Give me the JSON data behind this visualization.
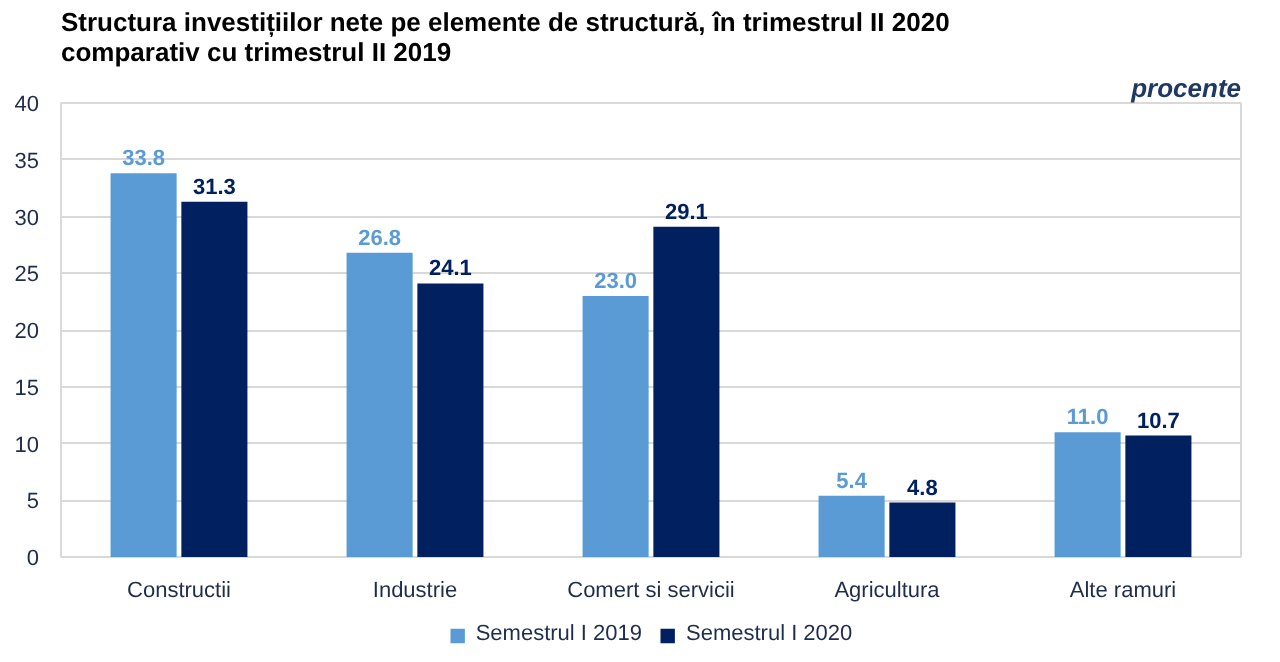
{
  "chart_data": {
    "type": "bar",
    "title": "Structura investițiilor nete pe elemente de structură, în trimestrul II 2020 comparativ cu trimestrul II 2019",
    "annotations": [
      "procente"
    ],
    "categories": [
      "Constructii",
      "Industrie",
      "Comert si servicii",
      "Agricultura",
      "Alte ramuri"
    ],
    "series": [
      {
        "name": "Semestrul I 2019",
        "color": "#5b9bd5",
        "values": [
          33.8,
          26.8,
          23.0,
          5.4,
          11.0
        ],
        "value_labels": [
          "33.8",
          "26.8",
          "23.0",
          "5.4",
          "11.0"
        ]
      },
      {
        "name": "Semestrul I 2020",
        "color": "#002060",
        "values": [
          31.3,
          24.1,
          29.1,
          4.8,
          10.7
        ],
        "value_labels": [
          "31.3",
          "24.1",
          "29.1",
          "4.8",
          "10.7"
        ]
      }
    ],
    "ylim": [
      0,
      40
    ],
    "yticks": [
      0,
      5,
      10,
      15,
      20,
      25,
      30,
      35,
      40
    ],
    "grid": "y",
    "legend": "bottom"
  }
}
